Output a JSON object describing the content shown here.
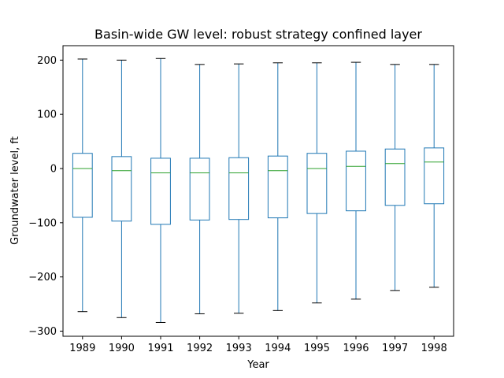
{
  "chart_data": {
    "type": "box",
    "title": "Basin-wide GW level: robust strategy confined layer",
    "xlabel": "Year",
    "ylabel": "Groundwater level, ft",
    "ylim": [
      -310,
      215
    ],
    "yticks": [
      200,
      100,
      0,
      -100,
      -200,
      -300
    ],
    "ytick_labels": [
      "200",
      "100",
      "0",
      "−100",
      "−200",
      "−300"
    ],
    "grid": false,
    "colors": {
      "box": "#1f77b4",
      "median": "#2ca02c",
      "cap": "#000000",
      "axes": "#000000"
    },
    "categories": [
      "1989",
      "1990",
      "1991",
      "1992",
      "1993",
      "1994",
      "1995",
      "1996",
      "1997",
      "1998"
    ],
    "boxes": [
      {
        "whisker_low": -264,
        "q1": -90,
        "median": 0,
        "q3": 28,
        "whisker_high": 202
      },
      {
        "whisker_low": -275,
        "q1": -97,
        "median": -4,
        "q3": 22,
        "whisker_high": 200
      },
      {
        "whisker_low": -284,
        "q1": -103,
        "median": -8,
        "q3": 19,
        "whisker_high": 203
      },
      {
        "whisker_low": -268,
        "q1": -95,
        "median": -8,
        "q3": 19,
        "whisker_high": 192
      },
      {
        "whisker_low": -267,
        "q1": -94,
        "median": -8,
        "q3": 20,
        "whisker_high": 193
      },
      {
        "whisker_low": -262,
        "q1": -91,
        "median": -4,
        "q3": 23,
        "whisker_high": 195
      },
      {
        "whisker_low": -248,
        "q1": -83,
        "median": 0,
        "q3": 28,
        "whisker_high": 195
      },
      {
        "whisker_low": -241,
        "q1": -78,
        "median": 4,
        "q3": 32,
        "whisker_high": 196
      },
      {
        "whisker_low": -225,
        "q1": -68,
        "median": 9,
        "q3": 36,
        "whisker_high": 192
      },
      {
        "whisker_low": -219,
        "q1": -65,
        "median": 12,
        "q3": 38,
        "whisker_high": 192
      }
    ]
  }
}
